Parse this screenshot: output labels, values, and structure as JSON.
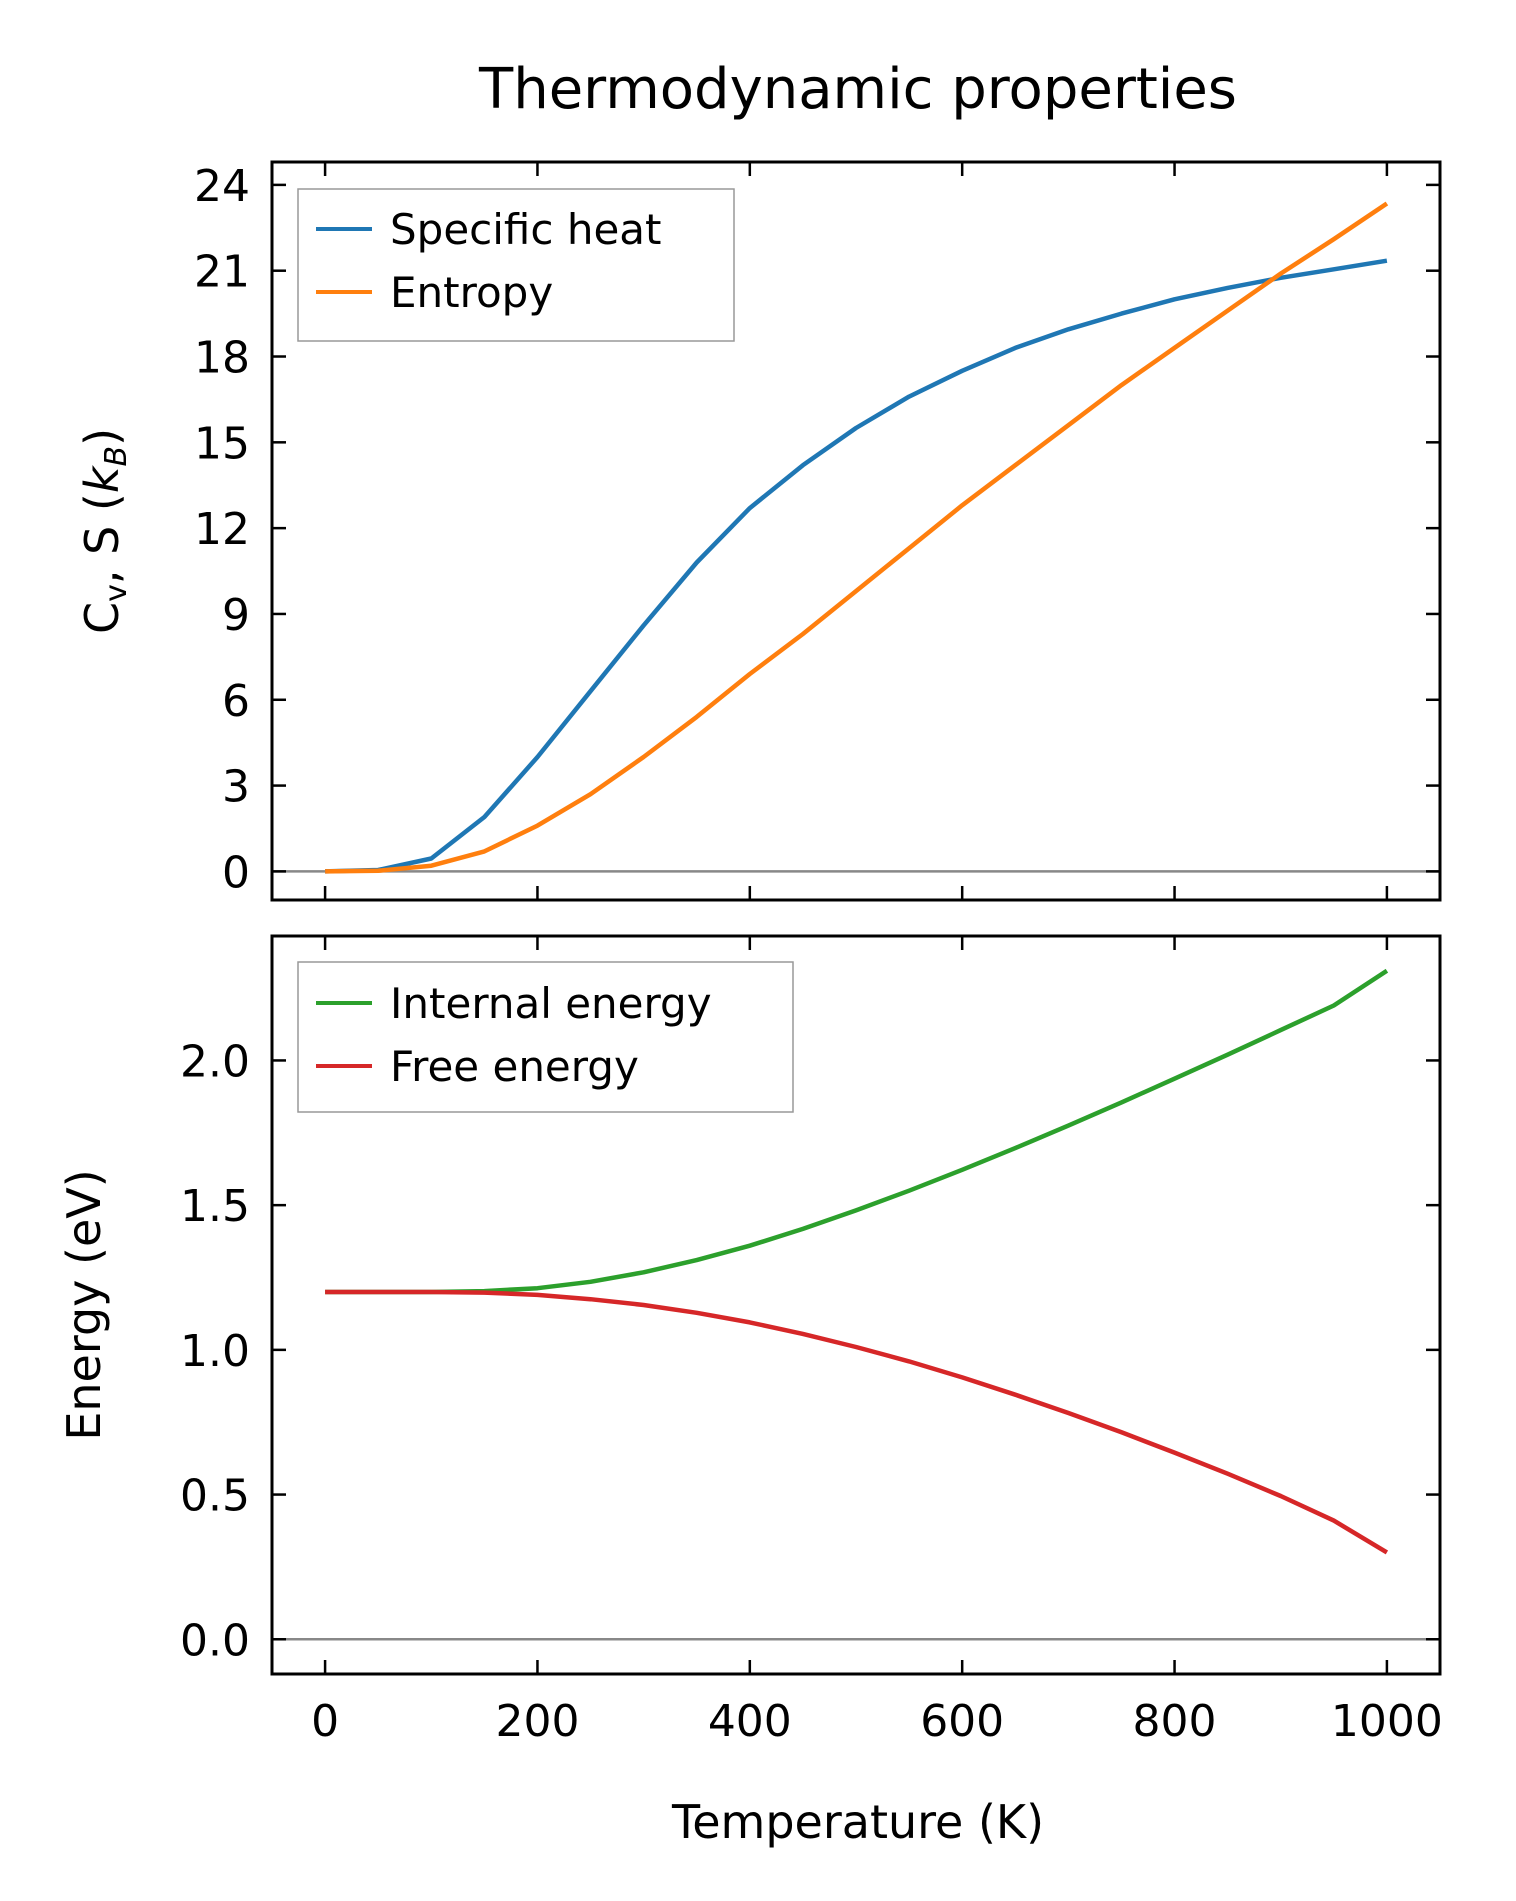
{
  "figure": {
    "title": "Thermodynamic properties"
  },
  "chart_data": [
    {
      "type": "line",
      "panel": "top",
      "title": "Thermodynamic properties",
      "xlabel": "",
      "ylabel": "Cv, S (kB)",
      "ylabel_parts": {
        "main": "C",
        "sub1": "v",
        "mid": ", S (",
        "k": "k",
        "sub2": "B",
        "end": ")"
      },
      "xlim": [
        -50,
        1050
      ],
      "ylim": [
        -1,
        24.8
      ],
      "xticks": [
        0,
        200,
        400,
        600,
        800,
        1000
      ],
      "xtick_labels_visible": false,
      "yticks": [
        0,
        3,
        6,
        9,
        12,
        15,
        18,
        21,
        24
      ],
      "ytick_labels": [
        "0",
        "3",
        "6",
        "9",
        "12",
        "15",
        "18",
        "21",
        "24"
      ],
      "hline": 0,
      "grid": false,
      "legend": {
        "position": "top-left",
        "entries": [
          "Specific heat",
          "Entropy"
        ]
      },
      "x": [
        0,
        50,
        100,
        150,
        200,
        250,
        300,
        350,
        400,
        450,
        500,
        550,
        600,
        650,
        700,
        750,
        800,
        850,
        900,
        950,
        1000
      ],
      "series": [
        {
          "name": "Specific heat",
          "color": "#1f77b4",
          "values": [
            0,
            0.05,
            0.45,
            1.9,
            4.0,
            6.3,
            8.6,
            10.8,
            12.7,
            14.2,
            15.5,
            16.6,
            17.5,
            18.3,
            18.95,
            19.5,
            20.0,
            20.4,
            20.75,
            21.05,
            21.35
          ]
        },
        {
          "name": "Entropy",
          "color": "#ff7f0e",
          "values": [
            0,
            0.02,
            0.2,
            0.7,
            1.6,
            2.7,
            4.0,
            5.4,
            6.9,
            8.3,
            9.8,
            11.3,
            12.8,
            14.2,
            15.6,
            17.0,
            18.3,
            19.6,
            20.9,
            22.1,
            23.35
          ]
        }
      ]
    },
    {
      "type": "line",
      "panel": "bottom",
      "xlabel": "Temperature (K)",
      "ylabel": "Energy (eV)",
      "xlim": [
        -50,
        1050
      ],
      "ylim": [
        -0.12,
        2.43
      ],
      "xticks": [
        0,
        200,
        400,
        600,
        800,
        1000
      ],
      "xtick_labels": [
        "0",
        "200",
        "400",
        "600",
        "800",
        "1000"
      ],
      "yticks": [
        0.0,
        0.5,
        1.0,
        1.5,
        2.0
      ],
      "ytick_labels": [
        "0.0",
        "0.5",
        "1.0",
        "1.5",
        "2.0"
      ],
      "hline": 0,
      "grid": false,
      "legend": {
        "position": "top-left",
        "entries": [
          "Internal energy",
          "Free energy"
        ]
      },
      "x": [
        0,
        50,
        100,
        150,
        200,
        250,
        300,
        350,
        400,
        450,
        500,
        550,
        600,
        650,
        700,
        750,
        800,
        850,
        900,
        950,
        1000
      ],
      "series": [
        {
          "name": "Internal energy",
          "color": "#2ca02c",
          "values": [
            1.2,
            1.2,
            1.2,
            1.203,
            1.213,
            1.235,
            1.268,
            1.31,
            1.36,
            1.418,
            1.482,
            1.55,
            1.622,
            1.697,
            1.775,
            1.855,
            1.937,
            2.02,
            2.105,
            2.19,
            2.31
          ]
        },
        {
          "name": "Free energy",
          "color": "#d62728",
          "values": [
            1.2,
            1.2,
            1.2,
            1.198,
            1.19,
            1.175,
            1.155,
            1.128,
            1.095,
            1.055,
            1.01,
            0.96,
            0.905,
            0.845,
            0.782,
            0.715,
            0.645,
            0.572,
            0.495,
            0.41,
            0.3
          ]
        }
      ]
    }
  ]
}
